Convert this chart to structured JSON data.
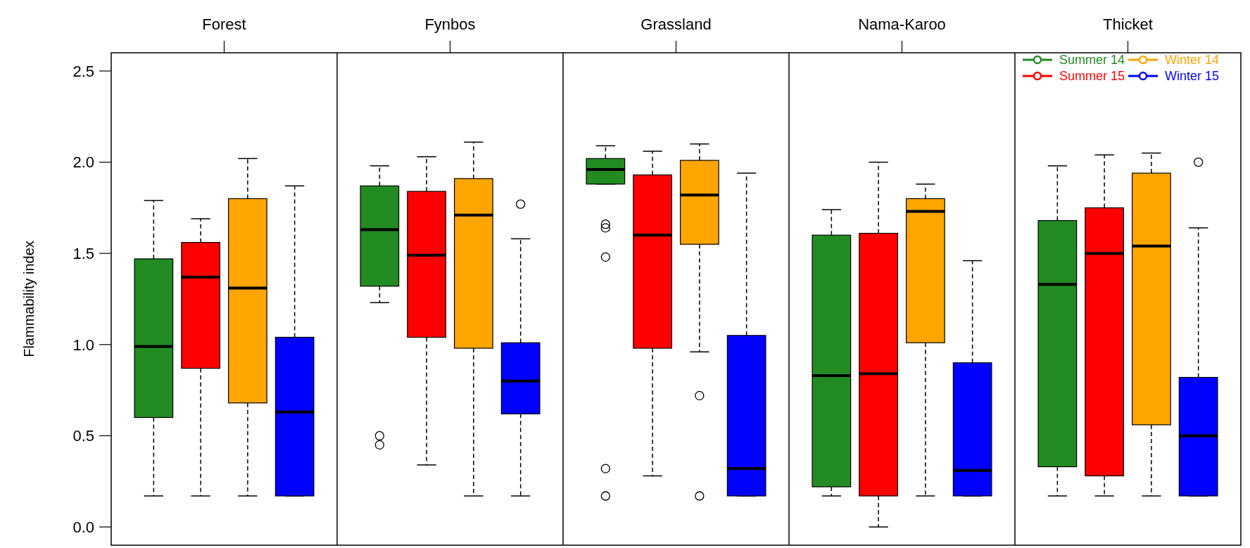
{
  "chart_data": {
    "type": "box",
    "ylabel": "Flammability index",
    "categories": [
      "Forest",
      "Fynbos",
      "Grassland",
      "Nama-Karoo",
      "Thicket"
    ],
    "ylim": [
      -0.1,
      2.6
    ],
    "yticks": [
      {
        "value": 0,
        "label": "0.0"
      },
      0.5,
      {
        "value": 1,
        "label": "1.0"
      },
      1.5,
      {
        "value": 2,
        "label": "2.0"
      },
      2.5
    ],
    "grid": false,
    "legend": "top right",
    "series": [
      {
        "name": "Summer 14",
        "color": "#228b22",
        "boxes": [
          {
            "low": 0.17,
            "q1": 0.6,
            "median": 0.99,
            "q3": 1.47,
            "high": 1.79
          },
          {
            "low": 1.23,
            "q1": 1.32,
            "median": 1.63,
            "q3": 1.87,
            "high": 1.98,
            "outliers": [
              0.5,
              0.45
            ]
          },
          {
            "low": 1.88,
            "q1": 1.88,
            "median": 1.96,
            "q3": 2.02,
            "high": 2.09,
            "outliers": [
              1.66,
              1.64,
              1.48,
              0.32,
              0.17
            ]
          },
          {
            "low": 0.17,
            "q1": 0.22,
            "median": 0.83,
            "q3": 1.6,
            "high": 1.74
          },
          {
            "low": 0.17,
            "q1": 0.33,
            "median": 1.33,
            "q3": 1.68,
            "high": 1.98
          }
        ]
      },
      {
        "name": "Summer 15",
        "color": "#ff0000",
        "boxes": [
          {
            "low": 0.17,
            "q1": 0.87,
            "median": 1.37,
            "q3": 1.56,
            "high": 1.69
          },
          {
            "low": 0.34,
            "q1": 1.04,
            "median": 1.49,
            "q3": 1.84,
            "high": 2.03
          },
          {
            "low": 0.28,
            "q1": 0.98,
            "median": 1.6,
            "q3": 1.93,
            "high": 2.06
          },
          {
            "low": 0.0,
            "q1": 0.17,
            "median": 0.84,
            "q3": 1.61,
            "high": 2.0
          },
          {
            "low": 0.17,
            "q1": 0.28,
            "median": 1.5,
            "q3": 1.75,
            "high": 2.04
          }
        ]
      },
      {
        "name": "Winter 14",
        "color": "#ffa500",
        "boxes": [
          {
            "low": 0.17,
            "q1": 0.68,
            "median": 1.31,
            "q3": 1.8,
            "high": 2.02
          },
          {
            "low": 0.17,
            "q1": 0.98,
            "median": 1.71,
            "q3": 1.91,
            "high": 2.11
          },
          {
            "low": 0.96,
            "q1": 1.55,
            "median": 1.82,
            "q3": 2.01,
            "high": 2.1,
            "outliers": [
              0.72,
              0.17
            ]
          },
          {
            "low": 0.17,
            "q1": 1.01,
            "median": 1.73,
            "q3": 1.8,
            "high": 1.88
          },
          {
            "low": 0.17,
            "q1": 0.56,
            "median": 1.54,
            "q3": 1.94,
            "high": 2.05
          }
        ]
      },
      {
        "name": "Winter 15",
        "color": "#0000ff",
        "boxes": [
          {
            "low": 0.17,
            "q1": 0.17,
            "median": 0.63,
            "q3": 1.04,
            "high": 1.87
          },
          {
            "low": 0.17,
            "q1": 0.62,
            "median": 0.8,
            "q3": 1.01,
            "high": 1.58,
            "outliers": [
              1.77
            ]
          },
          {
            "low": 0.17,
            "q1": 0.17,
            "median": 0.32,
            "q3": 1.05,
            "high": 1.94
          },
          {
            "low": 0.17,
            "q1": 0.17,
            "median": 0.31,
            "q3": 0.9,
            "high": 1.46
          },
          {
            "low": 0.17,
            "q1": 0.17,
            "median": 0.5,
            "q3": 0.82,
            "high": 1.64,
            "outliers": [
              2.0
            ]
          }
        ]
      }
    ]
  }
}
